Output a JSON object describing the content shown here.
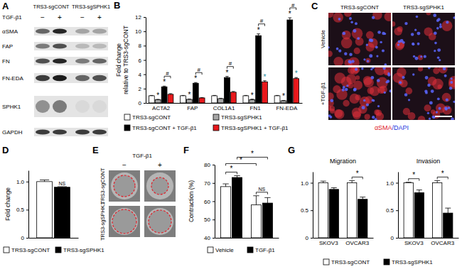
{
  "blot": {
    "panel": "A",
    "groups": [
      "TRS3-sgCONT",
      "TRS3-sgSPHK1"
    ],
    "treatment": "TGF-β1",
    "lanes": [
      "−",
      "+",
      "−",
      "+"
    ],
    "proteins": [
      "αSMA",
      "FAP",
      "FN",
      "FN-EDA",
      "SPHK1",
      "GAPDH"
    ]
  },
  "micrographs": {
    "panel": "C",
    "columns": [
      "TRS3-sgCONT",
      "TRS3-sgSPHK1"
    ],
    "rows": [
      "Vehicle",
      "+TGF-β1"
    ],
    "stain": [
      "αSMA",
      "/DAPI"
    ]
  },
  "gel_images": {
    "panel": "E",
    "treatment": "TGF-β1",
    "columns": [
      "−",
      "+"
    ],
    "rows": [
      "TRS3-sgCONT",
      "TRS3-sgSPHK1"
    ]
  },
  "chart_data": [
    {
      "panel": "B",
      "type": "bar",
      "ylabel": [
        "Fold change",
        "relative to TRS3-sgCONT"
      ],
      "categories": [
        "ACTA2",
        "FAP",
        "COL1A1",
        "FN1",
        "FN-EDA"
      ],
      "ylim": [
        0,
        12
      ],
      "yticks": [
        0,
        2,
        4,
        6,
        8,
        10,
        12
      ],
      "series": [
        {
          "name": "TRS3-sgCONT",
          "color": "#ffffff",
          "values": [
            1,
            1,
            1,
            1,
            1
          ],
          "errors": [
            0.05,
            0.05,
            0.05,
            0.05,
            0.05
          ]
        },
        {
          "name": "TRS3-sgSPHK1",
          "color": "#a6a6a6",
          "values": [
            0.45,
            0.5,
            0.6,
            0.45,
            0.3
          ],
          "errors": [
            0.05,
            0.05,
            0.05,
            0.08,
            0.05
          ],
          "annotations": [
            "*",
            "*",
            null,
            "*",
            "*"
          ]
        },
        {
          "name": "TRS3-sgCONT + TGF-β1",
          "color": "#000000",
          "values": [
            2.25,
            2.75,
            3.55,
            9.4,
            11.6
          ],
          "errors": [
            0.1,
            0.1,
            0.15,
            0.25,
            0.3
          ],
          "annotations": [
            "*",
            "*",
            "*",
            "*",
            "*"
          ]
        },
        {
          "name": "TRS3-sgSPHK1 + TGF-β1",
          "color": "#e8191c",
          "values": [
            1.2,
            0.7,
            1.5,
            2.95,
            3.4
          ],
          "errors": [
            0.1,
            0.05,
            0.1,
            0.15,
            0.15
          ],
          "annotations": [
            null,
            null,
            null,
            "*",
            "*"
          ]
        }
      ],
      "within_category": [
        "#",
        "#",
        "#",
        "#",
        "#"
      ]
    },
    {
      "panel": "D",
      "type": "bar",
      "ylabel": "Fold change",
      "categories": [
        null
      ],
      "ylim": [
        0,
        1.2
      ],
      "yticks": [
        0,
        0.5,
        {
          "value": 1,
          "label": "1.0"
        }
      ],
      "series": [
        {
          "name": "TRS3-sgCONT",
          "color": "#ffffff",
          "values": [
            1
          ],
          "errors": [
            0.03
          ]
        },
        {
          "name": "TRS3-sgSPHK1",
          "color": "#000000",
          "values": [
            0.9
          ],
          "errors": [
            0.01
          ],
          "annotations": [
            "NS"
          ]
        }
      ]
    },
    {
      "panel": "F",
      "type": "bar",
      "ylabel": "Contraction (%)",
      "categories": [
        null,
        null
      ],
      "ylim": [
        40,
        80
      ],
      "yticks": [
        40,
        50,
        60,
        70,
        80
      ],
      "series": [
        {
          "name": "Vehicle",
          "color": "#ffffff",
          "values": [
            68,
            58
          ],
          "errors": [
            1.5,
            5
          ]
        },
        {
          "name": "TGF-β1",
          "color": "#000000",
          "values": [
            73,
            59
          ],
          "errors": [
            1,
            3
          ]
        }
      ],
      "within_category": [
        "*",
        "NS"
      ],
      "between_categories": [
        "*",
        "*"
      ]
    },
    {
      "panel": "G",
      "type": "bar",
      "title": "Migration",
      "categories": [
        "SKOV3",
        "OVCAR3"
      ],
      "ylim": [
        0,
        1.2
      ],
      "yticks": [
        0,
        0.5,
        {
          "value": 1,
          "label": "1.0"
        }
      ],
      "series": [
        {
          "name": "TRS3-sgCONT",
          "color": "#ffffff",
          "values": [
            1,
            1
          ],
          "errors": [
            0.03,
            0.04
          ]
        },
        {
          "name": "TRS3-sgSPHK1",
          "color": "#000000",
          "values": [
            0.88,
            0.7
          ],
          "errors": [
            0.03,
            0.04
          ]
        }
      ],
      "within_category": [
        null,
        "*"
      ]
    },
    {
      "type": "bar",
      "title": "Invasion",
      "categories": [
        "SKOV3",
        "OVCAR3"
      ],
      "ylim": [
        0,
        1.2
      ],
      "yticks": [
        0,
        0.5,
        {
          "value": 1,
          "label": "1.0"
        }
      ],
      "series": [
        {
          "color": "#ffffff",
          "values": [
            1,
            1
          ],
          "errors": [
            0.01,
            0.04
          ]
        },
        {
          "color": "#000000",
          "values": [
            0.82,
            0.45
          ],
          "errors": [
            0.05,
            0.09
          ]
        }
      ],
      "within_category": [
        "*",
        "*"
      ]
    }
  ]
}
